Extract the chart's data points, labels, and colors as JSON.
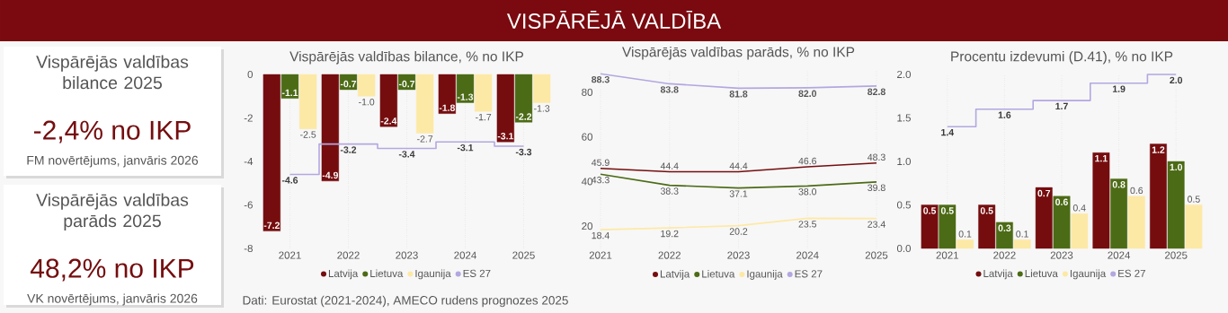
{
  "chart_data": [
    {
      "type": "other",
      "title": "VISPĀRĒJĀ VALDĪBA",
      "annotations": [
        "Dati: Eurostat (2021-2024), AMECO rudens prognozes 2025"
      ]
    },
    {
      "type": "other",
      "title": "Vispārējās valdības bilance 2025",
      "annotations": [
        "-2,4% no IKP",
        "FM novērtējums, janvāris 2026"
      ]
    },
    {
      "type": "other",
      "title": "Vispārējās valdības parāds 2025",
      "annotations": [
        "48,2% no IKP",
        "VK novērtējums, janvāris 2026"
      ]
    },
    {
      "type": "bar",
      "title": "Vispārējās valdības bilance, % no IKP",
      "categories": [
        "2021",
        "2022",
        "2023",
        "2024",
        "2025"
      ],
      "series": [
        {
          "name": "Latvija",
          "color": "#750d0f",
          "values": [
            -7.2,
            -4.9,
            -2.4,
            -1.8,
            -3.1
          ],
          "value_labels": [
            "-7.2",
            "-4.9",
            "-2.4",
            "-1.8",
            "-3.1"
          ]
        },
        {
          "name": "Lietuva",
          "color": "#4c6b16",
          "values": [
            -1.1,
            -0.7,
            -0.7,
            -1.3,
            -2.2
          ],
          "value_labels": [
            "-1.1",
            "-0.7",
            "-0.7",
            "-1.3",
            "-2.2"
          ]
        },
        {
          "name": "Igaunija",
          "color": "#fde9a6",
          "values": [
            -2.5,
            -1.0,
            -2.7,
            -1.7,
            -1.3
          ],
          "value_labels": [
            "-2.5",
            "-1.0",
            "-2.7",
            "-1.7",
            "-1.3"
          ]
        },
        {
          "name": "ES 27",
          "color": "#b4a7e0",
          "type": "step",
          "values": [
            -4.6,
            -3.2,
            -3.4,
            -3.1,
            -3.3
          ],
          "value_labels": [
            "-4.6",
            "-3.2",
            "-3.4",
            "-3.1",
            "-3.3"
          ]
        }
      ],
      "ylim": [
        -8,
        0
      ],
      "yticks": [
        -8,
        -6,
        -4,
        -2,
        0
      ],
      "grid": "x",
      "legend": "bottom"
    },
    {
      "type": "line",
      "title": "Vispārējās valdības parāds, % no IKP",
      "x": [
        2021,
        2022,
        2023,
        2024,
        2025
      ],
      "series": [
        {
          "name": "Latvija",
          "color": "#750d0f",
          "values": [
            45.9,
            44.4,
            44.4,
            46.6,
            48.3
          ],
          "value_labels": [
            "45.9",
            "44.4",
            "44.4",
            "46.6",
            "48.3"
          ]
        },
        {
          "name": "Lietuva",
          "color": "#4c6b16",
          "values": [
            43.3,
            38.3,
            37.1,
            38.0,
            39.8
          ],
          "value_labels": [
            "43.3",
            "38.3",
            "37.1",
            "38.0",
            "39.8"
          ]
        },
        {
          "name": "Igaunija",
          "color": "#fde9a6",
          "values": [
            18.4,
            19.2,
            20.2,
            23.5,
            23.4
          ],
          "value_labels": [
            "18.4",
            "19.2",
            "20.2",
            "23.5",
            "23.4"
          ]
        },
        {
          "name": "ES 27",
          "color": "#b4a7e0",
          "values": [
            88.3,
            83.8,
            81.8,
            82.0,
            82.8
          ],
          "value_labels": [
            "88.3",
            "83.8",
            "81.8",
            "82.0",
            "82.8"
          ]
        }
      ],
      "xlim": [
        2021,
        2025
      ],
      "xticks": [
        2021,
        2022,
        2023,
        2024,
        2025
      ],
      "ylim": [
        10,
        90
      ],
      "yticks": [
        20,
        40,
        60,
        80
      ],
      "grid": "x",
      "legend": "bottom"
    },
    {
      "type": "bar",
      "title": "Procentu izdevumi (D.41), % no IKP",
      "categories": [
        "2021",
        "2022",
        "2023",
        "2024",
        "2025"
      ],
      "series": [
        {
          "name": "Latvija",
          "color": "#750d0f",
          "values": [
            0.5,
            0.5,
            0.7,
            1.1,
            1.2
          ],
          "value_labels": [
            "0.5",
            "0.5",
            "0.7",
            "1.1",
            "1.2"
          ]
        },
        {
          "name": "Lietuva",
          "color": "#4c6b16",
          "values": [
            0.5,
            0.3,
            0.6,
            0.8,
            1.0
          ],
          "value_labels": [
            "0.5",
            "0.3",
            "0.6",
            "0.8",
            "1.0"
          ]
        },
        {
          "name": "Igaunija",
          "color": "#fde9a6",
          "values": [
            0.1,
            0.1,
            0.4,
            0.6,
            0.5
          ],
          "value_labels": [
            "0.1",
            "0.1",
            "0.4",
            "0.6",
            "0.5"
          ]
        },
        {
          "name": "ES 27",
          "color": "#b4a7e0",
          "type": "step",
          "values": [
            1.4,
            1.6,
            1.7,
            1.9,
            2.0
          ],
          "value_labels": [
            "1.4",
            "1.6",
            "1.7",
            "1.9",
            "2.0"
          ]
        }
      ],
      "ylim": [
        0,
        2
      ],
      "yticks": [
        {
          "value": 0,
          "label": "0.0"
        },
        {
          "value": 0.5,
          "label": "0.5"
        },
        {
          "value": 1,
          "label": "1.0"
        },
        {
          "value": 1.5,
          "label": "1.5"
        },
        {
          "value": 2,
          "label": "2.0"
        }
      ],
      "grid": "x",
      "legend": "bottom"
    }
  ]
}
